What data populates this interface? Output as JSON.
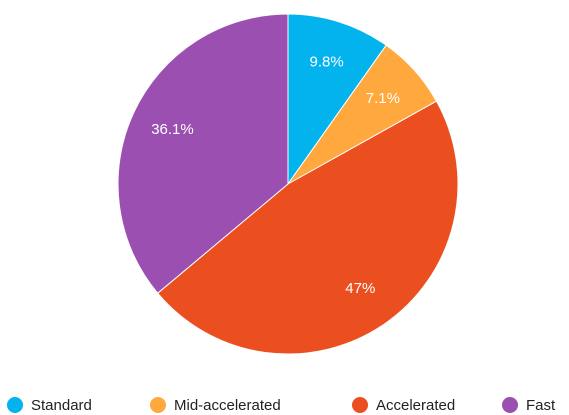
{
  "chart_data": {
    "type": "pie",
    "categories": [
      "Standard",
      "Mid-accelerated",
      "Accelerated",
      "Fast"
    ],
    "values": [
      9.8,
      7.1,
      47,
      36.1
    ],
    "value_labels": [
      "9.8%",
      "7.1%",
      "47%",
      "36.1%"
    ],
    "colors": [
      "#03b3ee",
      "#ffa83d",
      "#ec4f1f",
      "#9b4fb0"
    ],
    "legend": "bottom"
  }
}
